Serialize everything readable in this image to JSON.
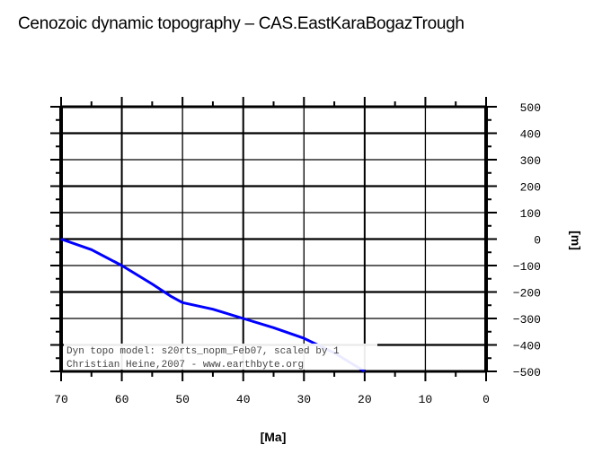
{
  "title": "Cenozoic dynamic topography – CAS.EastKaraBogazTrough",
  "chart_data": {
    "type": "line",
    "title": "Cenozoic dynamic topography – CAS.EastKaraBogazTrough",
    "xlabel": "[Ma]",
    "ylabel": "[m]",
    "xlim": [
      70,
      0
    ],
    "ylim": [
      -500,
      500
    ],
    "x_ticks": [
      70,
      60,
      50,
      40,
      30,
      20,
      10,
      0
    ],
    "y_ticks": [
      500,
      400,
      300,
      200,
      100,
      0,
      -100,
      -200,
      -300,
      -400,
      -500
    ],
    "y_axis_position": "right",
    "grid": true,
    "series": [
      {
        "name": "dynamic topography",
        "color": "#0000ff",
        "x": [
          70,
          65,
          60,
          55,
          52,
          50,
          45,
          40,
          35,
          30,
          25,
          20
        ],
        "values": [
          0,
          -40,
          -100,
          -170,
          -215,
          -240,
          -265,
          -300,
          -335,
          -375,
          -430,
          -500
        ]
      }
    ],
    "annotations": [
      "Dyn topo model: s20rts_nopm_Feb07, scaled by 1",
      "Christian Heine,2007 - www.earthbyte.org"
    ]
  },
  "legend": {
    "line1": "Dyn topo model: s20rts_nopm_Feb07, scaled by 1",
    "line2": "Christian Heine,2007 - www.earthbyte.org"
  },
  "axes": {
    "x_title": "[Ma]",
    "y_title": "[m]",
    "x_labels": [
      "70",
      "60",
      "50",
      "40",
      "30",
      "20",
      "10",
      "0"
    ],
    "y_labels": [
      "500",
      "400",
      "300",
      "200",
      "100",
      "0",
      "−100",
      "−200",
      "−300",
      "−400",
      "−500"
    ]
  },
  "colors": {
    "line": "#0000ff",
    "frame": "#000000",
    "legend_text": "#444444"
  }
}
